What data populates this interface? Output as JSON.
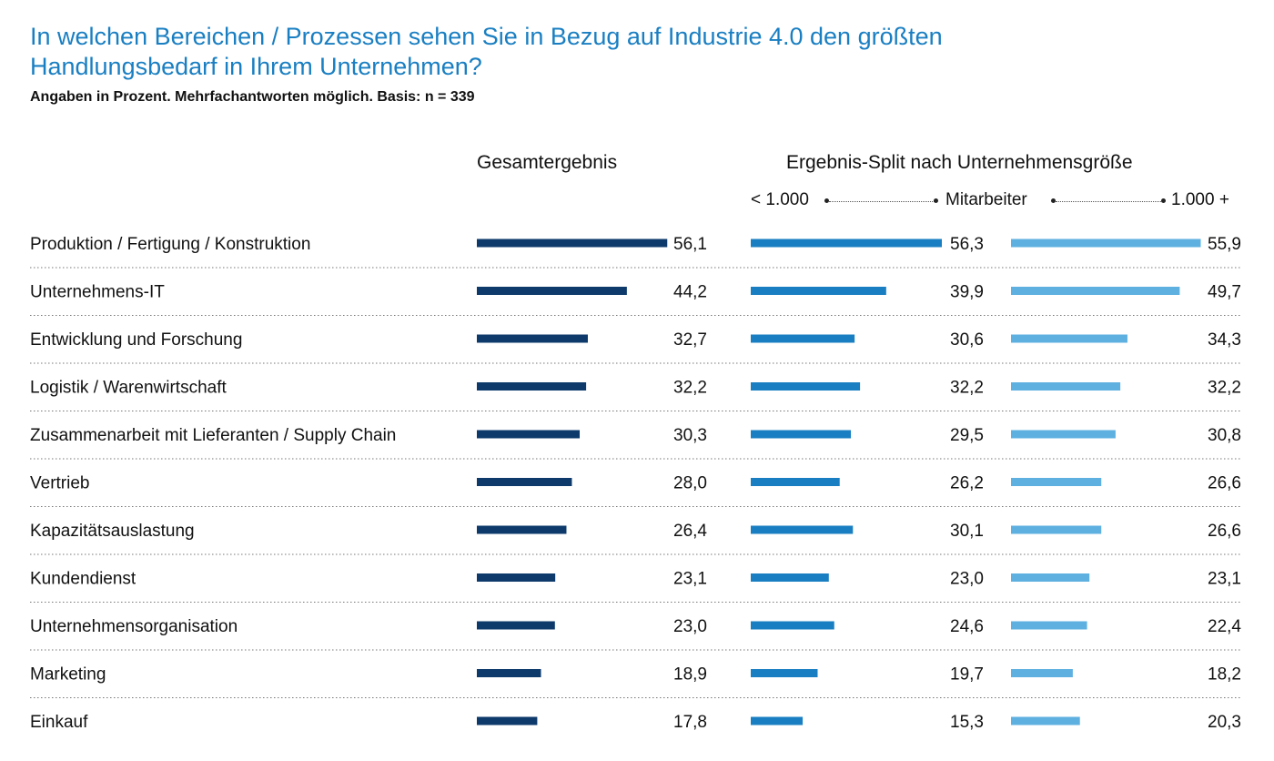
{
  "header": {
    "title": "In welchen Bereichen / Prozessen sehen Sie in Bezug auf Industrie 4.0 den größten Handlungsbedarf in Ihrem Unternehmen?",
    "subtitle": "Angaben in Prozent. Mehrfachantworten möglich. Basis: n = 339",
    "col_total": "Gesamtergebnis",
    "col_split": "Ergebnis-Split nach Unternehmensgröße",
    "scale_small": "< 1.000",
    "scale_mid": "Mitarbeiter",
    "scale_large": "1.000 +"
  },
  "colors": {
    "total": "#0d3a6b",
    "small": "#1a7fc2",
    "large": "#5eb0e0",
    "title": "#1a7fc2"
  },
  "chart_data": {
    "type": "bar",
    "orientation": "horizontal",
    "categories": [
      "Produktion / Fertigung / Konstruktion",
      "Unternehmens-IT",
      "Entwicklung und Forschung",
      "Logistik / Warenwirtschaft",
      "Zusammenarbeit mit Lieferanten / Supply Chain",
      "Vertrieb",
      "Kapazitätsauslastung",
      "Kundendienst",
      "Unternehmensorganisation",
      "Marketing",
      "Einkauf"
    ],
    "series": [
      {
        "name": "Gesamtergebnis",
        "values": [
          56.1,
          44.2,
          32.7,
          32.2,
          30.3,
          28.0,
          26.4,
          23.1,
          23.0,
          18.9,
          17.8
        ],
        "labels": [
          "56,1",
          "44,2",
          "32,7",
          "32,2",
          "30,3",
          "28,0",
          "26,4",
          "23,1",
          "23,0",
          "18,9",
          "17,8"
        ]
      },
      {
        "name": "< 1.000",
        "values": [
          56.3,
          39.9,
          30.6,
          32.2,
          29.5,
          26.2,
          30.1,
          23.0,
          24.6,
          19.7,
          15.3
        ],
        "labels": [
          "56,3",
          "39,9",
          "30,6",
          "32,2",
          "29,5",
          "26,2",
          "30,1",
          "23,0",
          "24,6",
          "19,7",
          "15,3"
        ]
      },
      {
        "name": "1.000 +",
        "values": [
          55.9,
          49.7,
          34.3,
          32.2,
          30.8,
          26.6,
          26.6,
          23.1,
          22.4,
          18.2,
          20.3
        ],
        "labels": [
          "55,9",
          "49,7",
          "34,3",
          "32,2",
          "30,8",
          "26,6",
          "26,6",
          "23,1",
          "22,4",
          "18,2",
          "20,3"
        ]
      }
    ],
    "xlim": [
      0,
      56.3
    ],
    "grid": false,
    "legend": "none"
  }
}
